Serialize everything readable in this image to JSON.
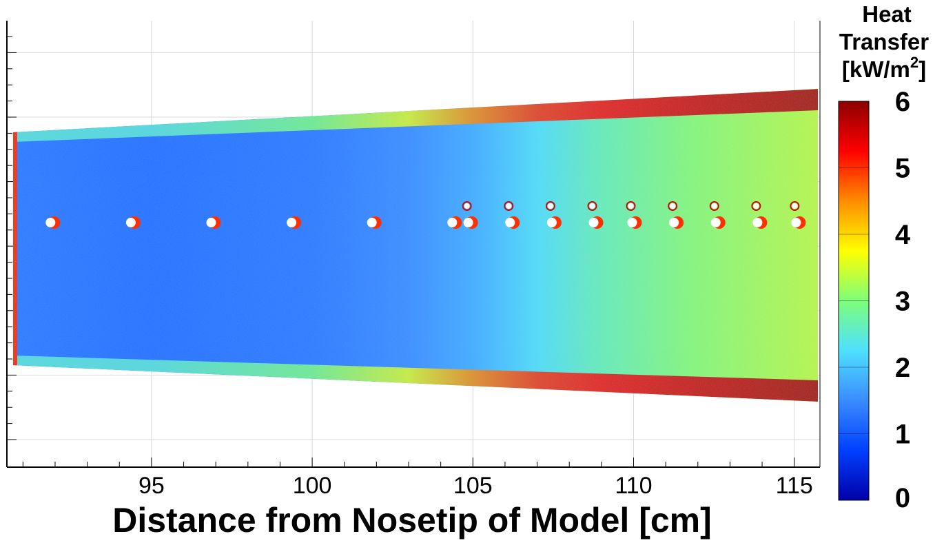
{
  "chart_data": {
    "type": "heatmap",
    "title": "",
    "xlabel": "Distance from Nosetip of Model [cm]",
    "ylabel": "",
    "xlim": [
      90.5,
      115.8
    ],
    "x_ticks": [
      95,
      100,
      105,
      110,
      115
    ],
    "grid": true,
    "colorbar": {
      "title_lines": [
        "Heat",
        "Transfer",
        "[kW/m",
        "2",
        "]"
      ],
      "ticks": [
        0,
        1,
        2,
        3,
        4,
        5,
        6
      ],
      "range": [
        0,
        6
      ],
      "colors": [
        "#0000a8",
        "#0040ff",
        "#3a8cff",
        "#4fe0ff",
        "#7dff7a",
        "#ffff00",
        "#ff8c00",
        "#ff0000",
        "#8b0000"
      ]
    },
    "heat_transfer_profile": {
      "x": [
        90.5,
        95,
        100,
        103,
        105,
        107,
        109,
        112,
        115.8
      ],
      "core_value_kw_m2": [
        1.3,
        1.2,
        1.3,
        1.5,
        1.8,
        2.3,
        2.7,
        3.1,
        3.4
      ],
      "edge_value_kw_m2": [
        2.5,
        2.5,
        3.0,
        3.6,
        4.5,
        5.0,
        5.2,
        5.5,
        5.8
      ]
    },
    "roughness_elements_x": [
      91.9,
      94.4,
      96.9,
      99.4,
      101.9,
      104.4,
      104.9,
      106.2,
      107.5,
      108.8,
      110.0,
      111.3,
      112.6,
      113.9,
      115.1
    ]
  }
}
